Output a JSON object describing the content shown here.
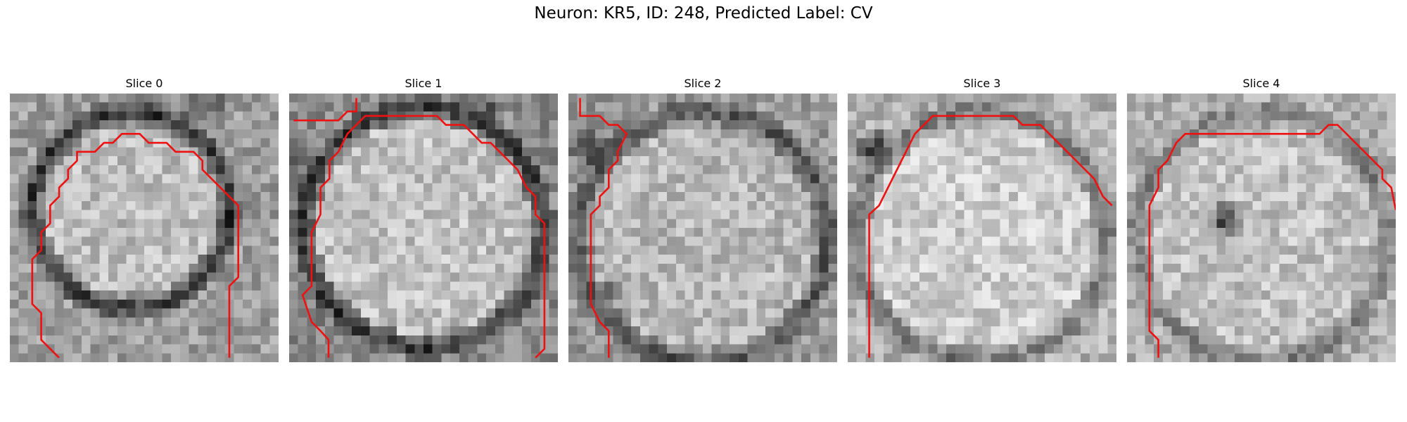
{
  "figure": {
    "title": "Neuron: KR5, ID: 248, Predicted Label: CV"
  },
  "colors": {
    "contour": "#ee1111",
    "background": "#ffffff"
  },
  "slices": [
    {
      "title": "Slice 0",
      "contour_icon": "segmentation-outline"
    },
    {
      "title": "Slice 1",
      "contour_icon": "segmentation-outline"
    },
    {
      "title": "Slice 2",
      "contour_icon": "segmentation-outline"
    },
    {
      "title": "Slice 3",
      "contour_icon": "segmentation-outline"
    },
    {
      "title": "Slice 4",
      "contour_icon": "segmentation-outline"
    }
  ]
}
